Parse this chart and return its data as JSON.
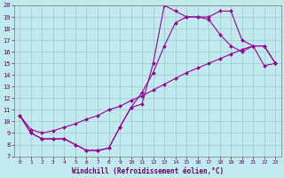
{
  "xlabel": "Windchill (Refroidissement éolien,°C)",
  "bg_color": "#c0eaed",
  "line_color": "#990099",
  "xlim": [
    -0.5,
    23.5
  ],
  "ylim": [
    7,
    20
  ],
  "xticks": [
    0,
    1,
    2,
    3,
    4,
    5,
    6,
    7,
    8,
    9,
    10,
    11,
    12,
    13,
    14,
    15,
    16,
    17,
    18,
    19,
    20,
    21,
    22,
    23
  ],
  "yticks": [
    7,
    8,
    9,
    10,
    11,
    12,
    13,
    14,
    15,
    16,
    17,
    18,
    19,
    20
  ],
  "curve1_x": [
    0,
    1,
    2,
    3,
    4,
    5,
    6,
    7,
    8,
    9,
    10,
    11,
    12,
    13,
    14,
    15,
    16,
    17,
    18,
    19,
    20,
    21,
    22,
    23
  ],
  "curve1_y": [
    10.5,
    9.0,
    8.5,
    8.5,
    8.5,
    8.0,
    7.5,
    7.5,
    7.7,
    9.5,
    11.2,
    11.5,
    15.0,
    20.0,
    19.5,
    19.0,
    19.0,
    19.0,
    19.5,
    19.5,
    17.0,
    16.5,
    16.5,
    15.0
  ],
  "curve2_x": [
    0,
    1,
    2,
    3,
    4,
    5,
    6,
    7,
    8,
    9,
    10,
    11,
    12,
    13,
    14,
    15,
    16,
    17,
    18,
    19,
    20,
    21,
    22,
    23
  ],
  "curve2_y": [
    10.5,
    9.0,
    8.5,
    8.5,
    8.5,
    8.0,
    7.5,
    7.5,
    7.7,
    9.5,
    11.2,
    12.5,
    14.2,
    16.5,
    18.5,
    19.0,
    19.0,
    18.8,
    17.5,
    16.5,
    16.0,
    16.5,
    16.5,
    15.0
  ],
  "curve3_x": [
    0,
    1,
    2,
    3,
    4,
    5,
    6,
    7,
    8,
    9,
    10,
    11,
    12,
    13,
    14,
    15,
    16,
    17,
    18,
    19,
    20,
    21,
    22,
    23
  ],
  "curve3_y": [
    10.5,
    9.3,
    9.0,
    9.2,
    9.5,
    9.8,
    10.2,
    10.5,
    11.0,
    11.3,
    11.8,
    12.2,
    12.7,
    13.2,
    13.7,
    14.2,
    14.6,
    15.0,
    15.4,
    15.8,
    16.2,
    16.5,
    14.8,
    15.0
  ],
  "grid_color": "#a0c8cc",
  "tick_color": "#660066",
  "xlabel_color": "#660066",
  "spine_color": "#7a7a7a"
}
